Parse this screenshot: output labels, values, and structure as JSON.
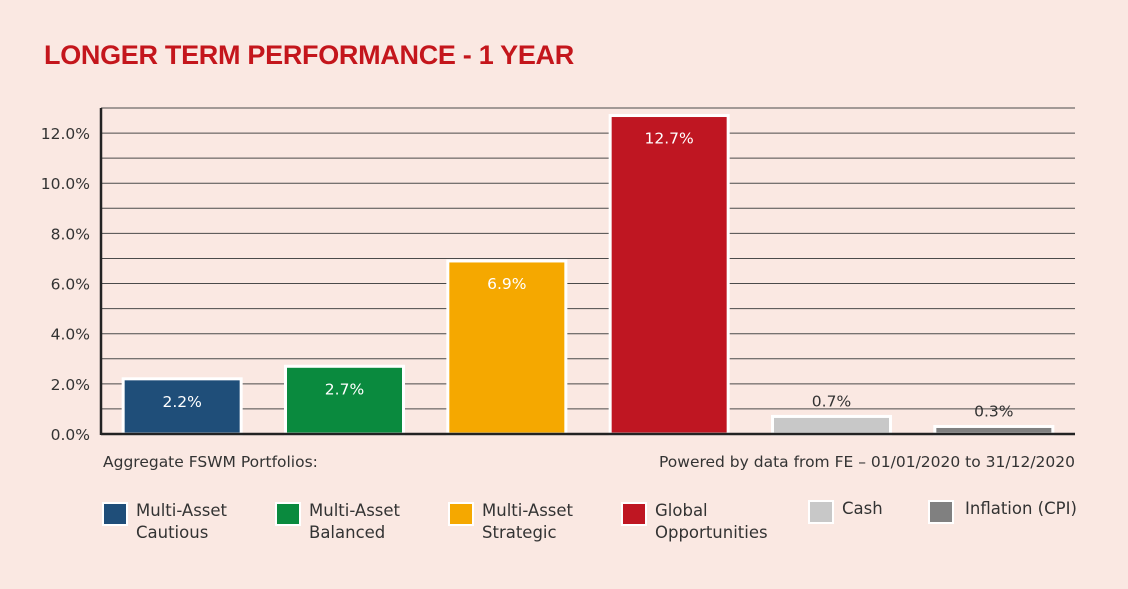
{
  "title": "LONGER TERM PERFORMANCE - 1 YEAR",
  "footnotes": {
    "left": "Aggregate FSWM Portfolios:",
    "right": "Powered by data from FE – 01/01/2020 to 31/12/2020"
  },
  "colors": {
    "background": "#fae8e2",
    "title": "#c4161c",
    "gridline": "#4a4a4a"
  },
  "legend": [
    {
      "line1": "Multi-Asset",
      "line2": "Cautious",
      "color": "#1f4e79"
    },
    {
      "line1": "Multi-Asset",
      "line2": "Balanced",
      "color": "#0a8a3e"
    },
    {
      "line1": "Multi-Asset",
      "line2": "Strategic",
      "color": "#f5a800"
    },
    {
      "line1": "Global",
      "line2": "Opportunities",
      "color": "#bf1622"
    },
    {
      "line1": "Cash",
      "line2": "",
      "color": "#c8c8c8"
    },
    {
      "line1": "Inflation (CPI)",
      "line2": "",
      "color": "#808080"
    }
  ],
  "chart_data": {
    "type": "bar",
    "title": "LONGER TERM PERFORMANCE - 1 YEAR",
    "categories": [
      "Multi-Asset Cautious",
      "Multi-Asset Balanced",
      "Multi-Asset Strategic",
      "Global Opportunities",
      "Cash",
      "Inflation (CPI)"
    ],
    "values": [
      2.2,
      2.7,
      6.9,
      12.7,
      0.7,
      0.3
    ],
    "value_labels": [
      "2.2%",
      "2.7%",
      "6.9%",
      "12.7%",
      "0.7%",
      "0.3%"
    ],
    "label_inside": [
      true,
      true,
      true,
      true,
      false,
      false
    ],
    "colors": [
      "#1f4e79",
      "#0a8a3e",
      "#f5a800",
      "#bf1622",
      "#c8c8c8",
      "#808080"
    ],
    "yticks": [
      0,
      2,
      4,
      6,
      8,
      10,
      12
    ],
    "ytick_labels": [
      "0.0%",
      "2.0%",
      "4.0%",
      "6.0%",
      "8.0%",
      "10.0%",
      "12.0%"
    ],
    "ylim": [
      0,
      13
    ],
    "grid": true,
    "xlabel": "",
    "ylabel": ""
  }
}
